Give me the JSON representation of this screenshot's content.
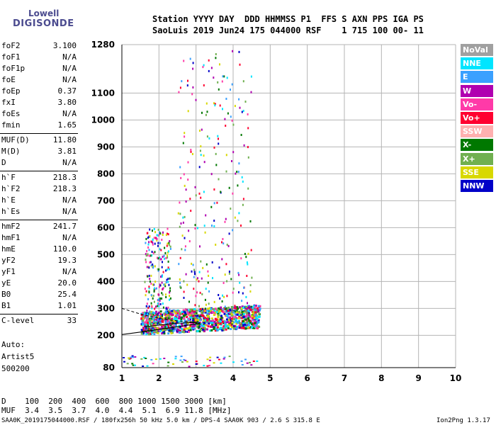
{
  "logo": {
    "line1": "Lowell",
    "line2": "DIGISONDE"
  },
  "header": {
    "line1": "Station YYYY DAY  DDD HHMMSS P1  FFS S AXN PPS IGA PS",
    "line2": "SaoLuis 2019 Jun24 175 044000 RSF    1 715 100 00- 11"
  },
  "parameters": [
    {
      "name": "foF2",
      "value": "3.100"
    },
    {
      "name": "foF1",
      "value": "N/A"
    },
    {
      "name": "foF1p",
      "value": "N/A"
    },
    {
      "name": "foE",
      "value": "N/A"
    },
    {
      "name": "foEp",
      "value": "0.37"
    },
    {
      "name": "fxI",
      "value": "3.80"
    },
    {
      "name": "foEs",
      "value": "N/A"
    },
    {
      "name": "fmin",
      "value": "1.65"
    },
    {
      "name": "MUF(D)",
      "value": "11.80"
    },
    {
      "name": "M(D)",
      "value": "3.81"
    },
    {
      "name": "D",
      "value": "N/A"
    },
    {
      "name": "h`F",
      "value": "218.3"
    },
    {
      "name": "h`F2",
      "value": "218.3"
    },
    {
      "name": "h`E",
      "value": "N/A"
    },
    {
      "name": "h`Es",
      "value": "N/A"
    },
    {
      "name": "hmF2",
      "value": "241.7"
    },
    {
      "name": "hmF1",
      "value": "N/A"
    },
    {
      "name": "hmE",
      "value": "110.0"
    },
    {
      "name": "yF2",
      "value": "19.3"
    },
    {
      "name": "yF1",
      "value": "N/A"
    },
    {
      "name": "yE",
      "value": "20.0"
    },
    {
      "name": "B0",
      "value": "25.4"
    },
    {
      "name": "B1",
      "value": "1.01"
    },
    {
      "name": "C-level",
      "value": "33"
    }
  ],
  "auto": {
    "line1": "Auto:",
    "line2": "Artist5",
    "line3": "500200"
  },
  "legend": [
    {
      "label": "NoVal",
      "color": "#a0a0a0"
    },
    {
      "label": "NNE",
      "color": "#00e5ff"
    },
    {
      "label": "E",
      "color": "#3aa0ff"
    },
    {
      "label": "W",
      "color": "#b000b0"
    },
    {
      "label": "Vo-",
      "color": "#ff3aa8"
    },
    {
      "label": "Vo+",
      "color": "#ff0030"
    },
    {
      "label": "SSW",
      "color": "#ffb0b0"
    },
    {
      "label": "X-",
      "color": "#007800"
    },
    {
      "label": "X+",
      "color": "#70b050"
    },
    {
      "label": "SSE",
      "color": "#d8d800"
    },
    {
      "label": "NNW",
      "color": "#0000c8"
    }
  ],
  "muf_table": {
    "d_line": "D    100  200  400  600  800 1000 1500 3000 [km]",
    "muf_line": "MUF  3.4  3.5  3.7  4.0  4.4  5.1  6.9 11.8 [MHz]"
  },
  "footer": {
    "left": "SAA0K_2019175044000.RSF / 180fx256h 50 kHz 5.0 km / DPS-4 SAA0K 903 / 2.6 S 315.8 E",
    "right": "Ion2Png 1.3.17"
  },
  "chart_data": {
    "type": "scatter",
    "xlim": [
      1,
      10
    ],
    "ylim": [
      80,
      1280
    ],
    "x_ticks": [
      1,
      2,
      3,
      4,
      5,
      6,
      7,
      8,
      9,
      10
    ],
    "y_ticks": [
      80,
      200,
      300,
      400,
      500,
      600,
      700,
      800,
      900,
      1000,
      1100,
      1280
    ],
    "grid": true,
    "legend_position": "right",
    "trace_dashed": {
      "x": [
        1.0,
        1.6,
        2.2,
        2.8,
        3.1
      ],
      "y": [
        300,
        275,
        258,
        250,
        245
      ]
    },
    "trace_solid": {
      "x": [
        1.0,
        1.5,
        2.0,
        2.5,
        3.0,
        3.1
      ],
      "y": [
        203,
        212,
        222,
        232,
        242,
        245
      ]
    },
    "trace_upper": {
      "x": [
        1.6,
        2.0,
        2.5,
        3.0
      ],
      "y": [
        232,
        238,
        245,
        248
      ]
    }
  }
}
